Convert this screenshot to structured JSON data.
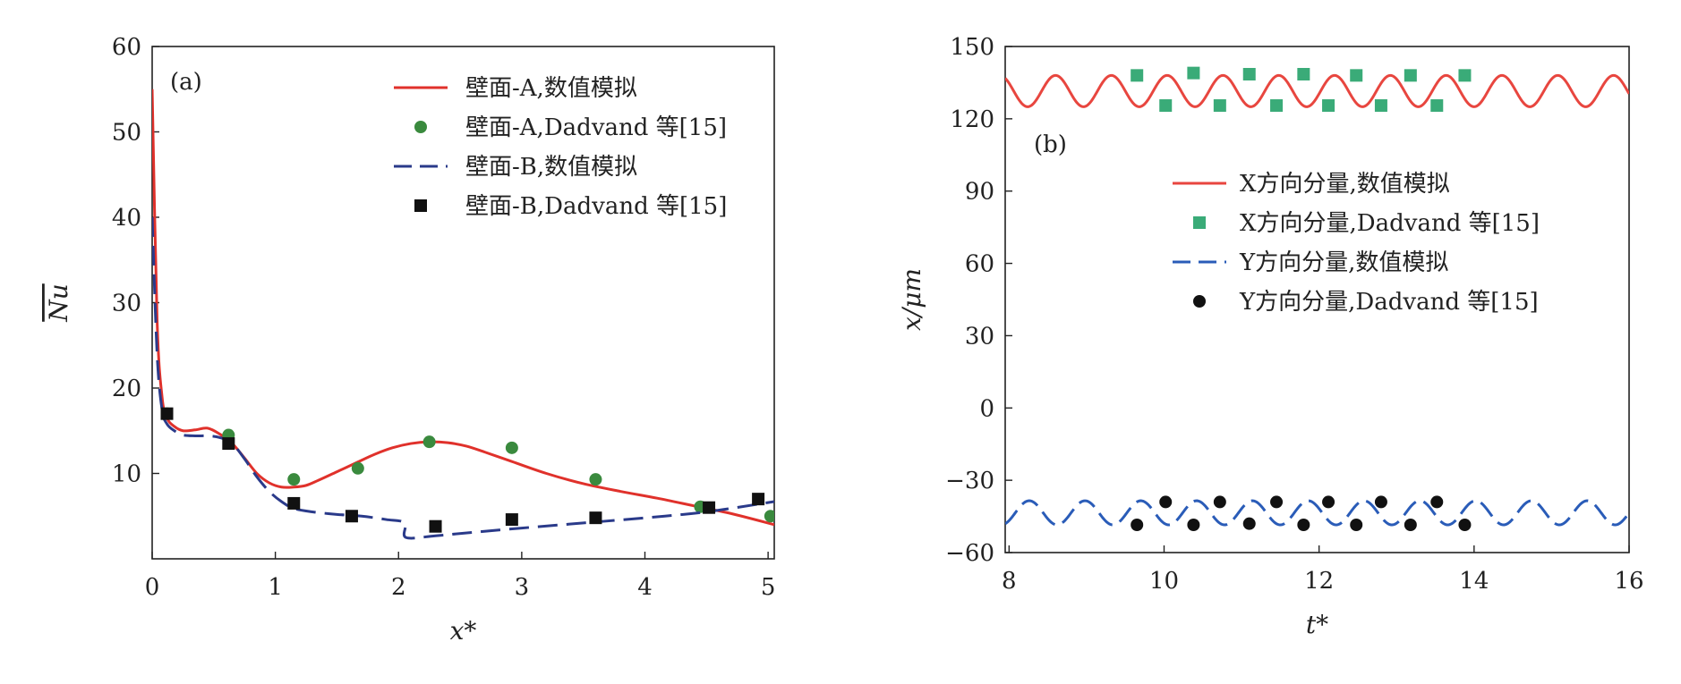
{
  "chart_data": [
    {
      "type": "line",
      "panel_label": "(a)",
      "xlabel": "x*",
      "ylabel": "Nu",
      "xlim": [
        0,
        5.05
      ],
      "ylim": [
        0,
        60
      ],
      "xticks": [
        "0",
        "1",
        "2",
        "3",
        "4",
        "5"
      ],
      "xtick_values": [
        0,
        1,
        2,
        3,
        4,
        5
      ],
      "yticks": [
        "10",
        "20",
        "30",
        "40",
        "50",
        "60"
      ],
      "ytick_values": [
        10,
        20,
        30,
        40,
        50,
        60
      ],
      "legend_position": "top-right",
      "series": [
        {
          "name": "壁面-A,数值模拟",
          "kind": "line",
          "color": "#e0312b",
          "x": [
            0.0,
            0.04,
            0.08,
            0.12,
            0.18,
            0.25,
            0.35,
            0.45,
            0.55,
            0.65,
            0.75,
            0.85,
            0.95,
            1.05,
            1.15,
            1.25,
            1.35,
            1.5,
            1.65,
            1.8,
            1.95,
            2.1,
            2.25,
            2.4,
            2.55,
            2.7,
            2.9,
            3.2,
            3.5,
            3.8,
            4.1,
            4.4,
            4.7,
            5.05
          ],
          "y": [
            55,
            28,
            19,
            16.5,
            15.5,
            15.0,
            15.1,
            15.3,
            14.6,
            13.5,
            11.8,
            10.0,
            8.9,
            8.4,
            8.4,
            8.6,
            9.2,
            10.2,
            11.2,
            12.2,
            13.0,
            13.5,
            13.7,
            13.6,
            13.2,
            12.5,
            11.5,
            10.0,
            8.8,
            7.9,
            7.1,
            6.2,
            5.3,
            4.0
          ]
        },
        {
          "name": "壁面-A,Dadvand 等[15]",
          "kind": "circle",
          "color": "#3a8a3e",
          "x": [
            0.12,
            0.62,
            1.15,
            1.67,
            2.25,
            2.92,
            3.6,
            4.45,
            5.02
          ],
          "y": [
            17.0,
            14.5,
            9.3,
            10.6,
            13.7,
            13.0,
            9.3,
            6.1,
            5.0
          ]
        },
        {
          "name": "壁面-B,数值模拟",
          "kind": "dash",
          "color": "#2a3a8a",
          "x": [
            0.0,
            0.04,
            0.08,
            0.12,
            0.18,
            0.25,
            0.35,
            0.45,
            0.55,
            0.65,
            0.75,
            0.85,
            0.95,
            1.05,
            1.15,
            1.3,
            1.5,
            1.7,
            1.9,
            2.05,
            2.06,
            2.3,
            2.6,
            3.0,
            3.5,
            4.0,
            4.5,
            5.05
          ],
          "y": [
            40,
            24,
            17.5,
            15.8,
            15.0,
            14.5,
            14.4,
            14.4,
            14.2,
            13.5,
            11.7,
            9.6,
            7.9,
            6.7,
            5.9,
            5.5,
            5.2,
            5.0,
            4.6,
            4.2,
            2.5,
            2.7,
            3.1,
            3.6,
            4.2,
            4.8,
            5.5,
            6.7
          ]
        },
        {
          "name": "壁面-B,Dadvand 等[15]",
          "kind": "square",
          "color": "#111111",
          "x": [
            0.12,
            0.62,
            1.15,
            1.62,
            2.3,
            2.92,
            3.6,
            4.52,
            4.92
          ],
          "y": [
            17.0,
            13.5,
            6.5,
            5.0,
            3.8,
            4.6,
            4.8,
            6.0,
            7.0
          ]
        }
      ]
    },
    {
      "type": "line",
      "panel_label": "(b)",
      "xlabel": "t*",
      "ylabel": "x/μm",
      "xlim": [
        7.95,
        16
      ],
      "ylim": [
        -60,
        150
      ],
      "xticks": [
        "8",
        "10",
        "12",
        "14",
        "16"
      ],
      "xtick_values": [
        8,
        10,
        12,
        14,
        16
      ],
      "yticks": [
        "−60",
        "−30",
        "0",
        "30",
        "60",
        "90",
        "120",
        "150"
      ],
      "ytick_values": [
        -60,
        -30,
        0,
        30,
        60,
        90,
        120,
        150
      ],
      "legend_position": "upper-middle",
      "series": [
        {
          "name": "X方向分量,数值模拟",
          "kind": "sine",
          "color": "#e8463f",
          "mean": 131.5,
          "amplitude": 6.5,
          "period": 0.72,
          "phase_t": 8.42
        },
        {
          "name": "X方向分量,Dadvand 等[15]",
          "kind": "square",
          "color": "#3aab78",
          "x": [
            9.65,
            10.02,
            10.38,
            10.72,
            11.1,
            11.45,
            11.8,
            12.12,
            12.48,
            12.8,
            13.18,
            13.52,
            13.88
          ],
          "y": [
            138,
            125.5,
            139,
            125.5,
            138.5,
            125.5,
            138.5,
            125.5,
            138,
            125.5,
            138,
            125.5,
            138
          ]
        },
        {
          "name": "Y方向分量,数值模拟",
          "kind": "sine-dash",
          "color": "#2a5cb8",
          "mean": -43.5,
          "amplitude": 5.0,
          "period": 0.72,
          "phase_t": 8.08
        },
        {
          "name": "Y方向分量,Dadvand 等[15]",
          "kind": "circle",
          "color": "#111111",
          "x": [
            9.65,
            10.02,
            10.38,
            10.72,
            11.1,
            11.45,
            11.8,
            12.12,
            12.48,
            12.8,
            13.18,
            13.52,
            13.88
          ],
          "y": [
            -48.5,
            -39,
            -48.5,
            -39,
            -48,
            -39,
            -48.5,
            -39,
            -48.5,
            -39,
            -48.5,
            -39,
            -48.5
          ]
        }
      ]
    }
  ]
}
